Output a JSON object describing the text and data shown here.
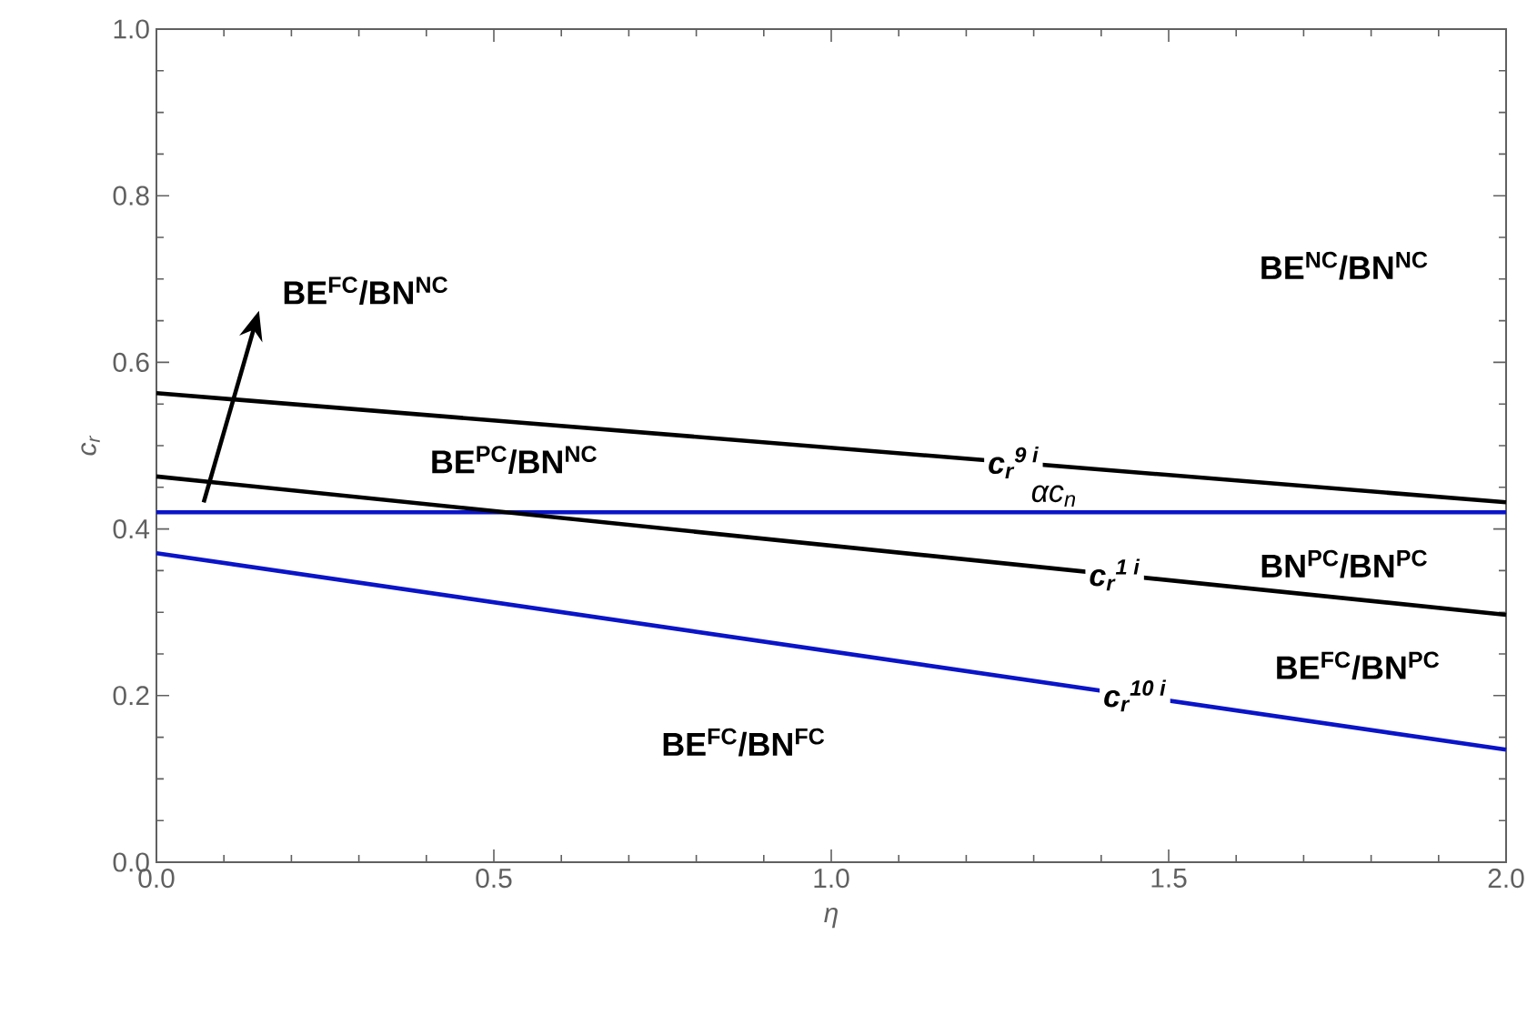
{
  "chart_data": {
    "type": "line",
    "xlabel": "η",
    "ylabel": "c$_{r}$",
    "xlim": [
      0,
      2
    ],
    "ylim": [
      0,
      1
    ],
    "xticks": [
      {
        "value": 0,
        "label": "0.0"
      },
      {
        "value": 0.5,
        "label": "0.5"
      },
      {
        "value": 1,
        "label": "1.0"
      },
      {
        "value": 1.5,
        "label": "1.5"
      },
      {
        "value": 2,
        "label": "2.0"
      }
    ],
    "yticks": [
      {
        "value": 0,
        "label": "0.0"
      },
      {
        "value": 0.2,
        "label": "0.2"
      },
      {
        "value": 0.4,
        "label": "0.4"
      },
      {
        "value": 0.6,
        "label": "0.6"
      },
      {
        "value": 0.8,
        "label": "0.8"
      },
      {
        "value": 1,
        "label": "1.0"
      }
    ],
    "series": [
      {
        "name": "c$_{r}$$^{9 i}$",
        "color": "#000000",
        "values": [
          0.563,
          0.432
        ]
      },
      {
        "name": "αc$_{n}$",
        "color": "#0a14c8",
        "values": [
          0.42,
          0.42
        ]
      },
      {
        "name": "c$_{r}$$^{1 i}$",
        "color": "#000000",
        "values": [
          0.463,
          0.297
        ]
      },
      {
        "name": "c$_{r}$$^{10 i}$",
        "color": "#0a14c8",
        "values": [
          0.371,
          0.135
        ]
      }
    ],
    "x": [
      0,
      2
    ],
    "annotations": [
      "BE$^{FC}$/BN$^{NC}$",
      "BE$^{PC}$/BN$^{NC}$",
      "BE$^{NC}$/BN$^{NC}$",
      "BN$^{PC}$/BN$^{PC}$",
      "BE$^{FC}$/BN$^{PC}$",
      "BE$^{FC}$/BN$^{FC}$"
    ]
  }
}
